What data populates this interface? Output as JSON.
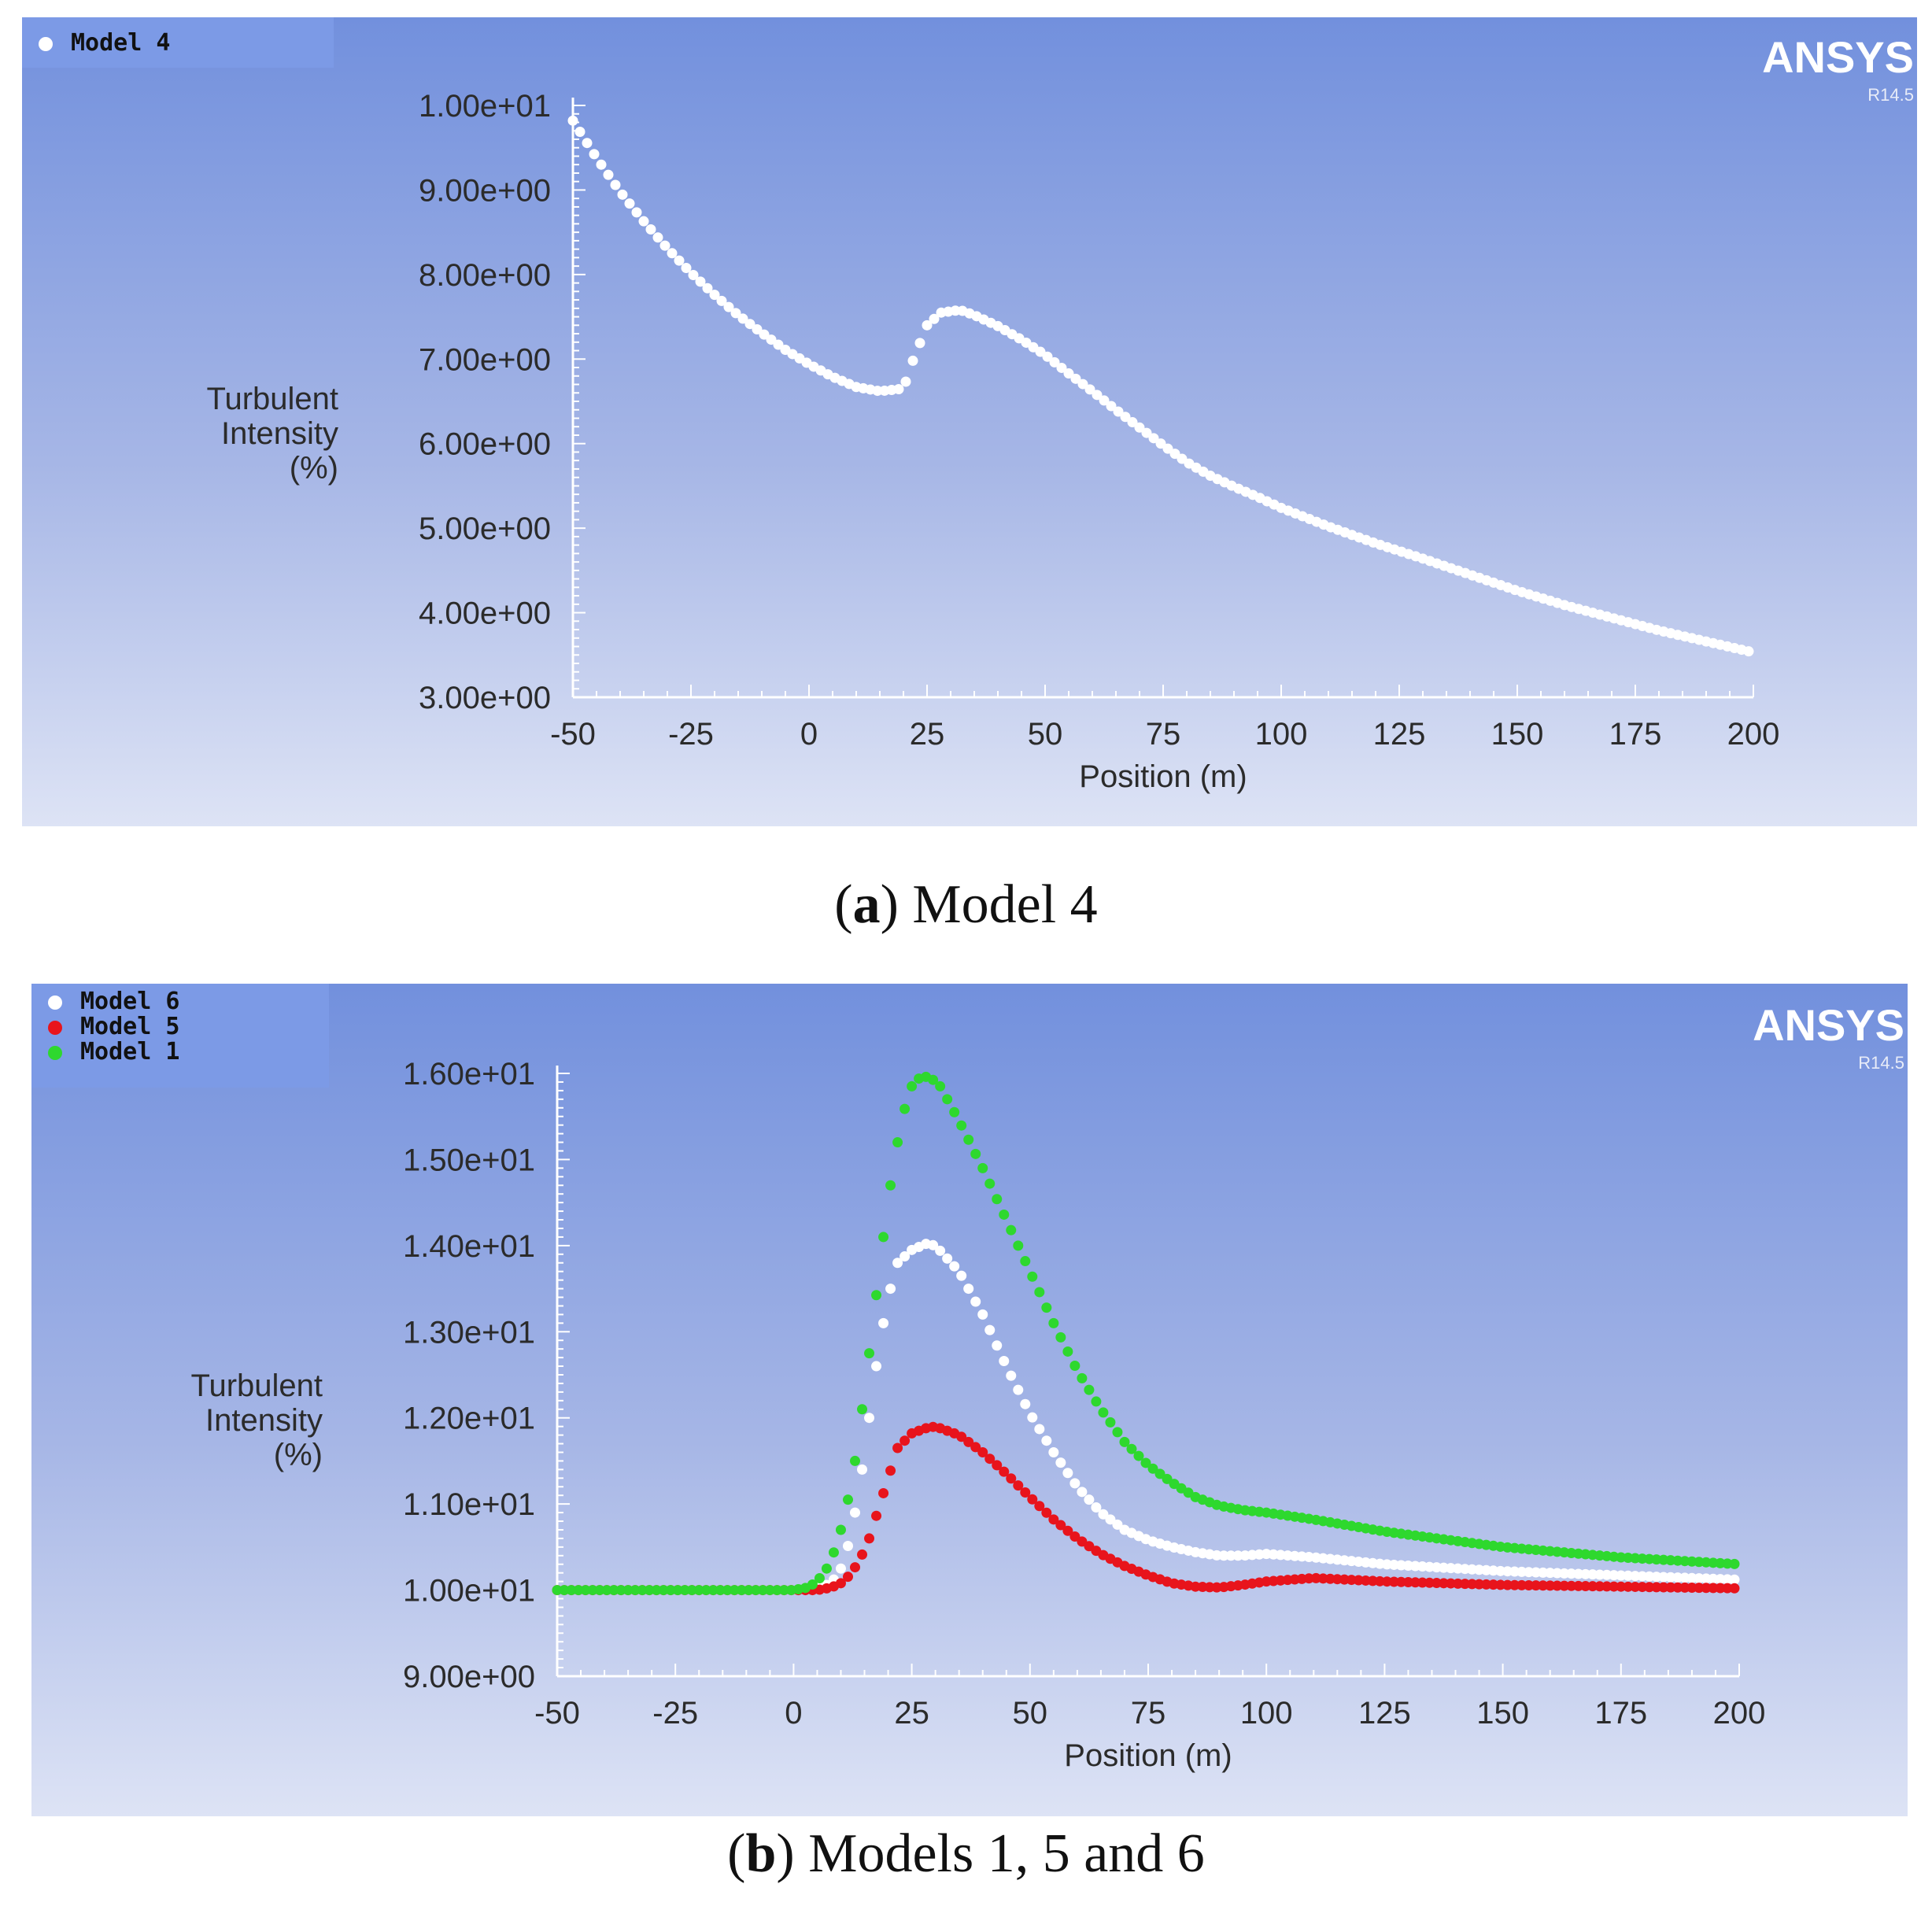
{
  "chart_data": [
    {
      "type": "scatter",
      "panel_label": "a",
      "caption": "Model 4",
      "brand": "ANSYS",
      "version": "R14.5",
      "ylabel_lines": [
        "Turbulent",
        "Intensity",
        "(%)"
      ],
      "xlabel": "Position (m)",
      "xlim": [
        -50,
        200
      ],
      "ylim": [
        3,
        10
      ],
      "x_ticks": [
        -50,
        -25,
        0,
        25,
        50,
        75,
        100,
        125,
        150,
        175,
        200
      ],
      "x_tick_labels": [
        "-50",
        "-25",
        "0",
        "25",
        "50",
        "75",
        "100",
        "125",
        "150",
        "175",
        "200"
      ],
      "y_ticks": [
        3,
        4,
        5,
        6,
        7,
        8,
        9,
        10
      ],
      "y_tick_labels": [
        "3.00e+00",
        "4.00e+00",
        "5.00e+00",
        "6.00e+00",
        "7.00e+00",
        "8.00e+00",
        "9.00e+00",
        "1.00e+01"
      ],
      "series": [
        {
          "name": "Model 4",
          "color": "#ffffff",
          "x": [
            -50,
            -45,
            -40,
            -35,
            -30,
            -25,
            -20,
            -15,
            -10,
            -5,
            0,
            5,
            10,
            15,
            20,
            22,
            25,
            28,
            32,
            35,
            40,
            45,
            50,
            55,
            60,
            65,
            70,
            75,
            80,
            85,
            90,
            95,
            100,
            110,
            120,
            130,
            140,
            150,
            160,
            170,
            180,
            190,
            200
          ],
          "y": [
            9.82,
            9.38,
            8.98,
            8.63,
            8.31,
            8.02,
            7.76,
            7.52,
            7.31,
            7.11,
            6.94,
            6.79,
            6.67,
            6.62,
            6.65,
            6.98,
            7.4,
            7.55,
            7.58,
            7.52,
            7.39,
            7.23,
            7.05,
            6.83,
            6.62,
            6.4,
            6.19,
            5.98,
            5.78,
            5.62,
            5.49,
            5.37,
            5.24,
            5.02,
            4.82,
            4.64,
            4.45,
            4.26,
            4.09,
            3.94,
            3.79,
            3.66,
            3.53
          ]
        }
      ]
    },
    {
      "type": "scatter",
      "panel_label": "b",
      "caption": "Models 1, 5 and 6",
      "brand": "ANSYS",
      "version": "R14.5",
      "ylabel_lines": [
        "Turbulent",
        "Intensity",
        "(%)"
      ],
      "xlabel": "Position (m)",
      "xlim": [
        -50,
        200
      ],
      "ylim": [
        9,
        16
      ],
      "x_ticks": [
        -50,
        -25,
        0,
        25,
        50,
        75,
        100,
        125,
        150,
        175,
        200
      ],
      "x_tick_labels": [
        "-50",
        "-25",
        "0",
        "25",
        "50",
        "75",
        "100",
        "125",
        "150",
        "175",
        "200"
      ],
      "y_ticks": [
        9,
        10,
        11,
        12,
        13,
        14,
        15,
        16
      ],
      "y_tick_labels": [
        "9.00e+00",
        "1.00e+01",
        "1.10e+01",
        "1.20e+01",
        "1.30e+01",
        "1.40e+01",
        "1.50e+01",
        "1.60e+01"
      ],
      "series": [
        {
          "name": "Model 6",
          "color": "#ffffff",
          "x": [
            -50,
            0,
            5,
            8,
            10,
            12,
            14,
            16,
            18,
            20,
            22,
            25,
            28,
            30,
            35,
            40,
            45,
            50,
            55,
            60,
            65,
            70,
            75,
            80,
            85,
            90,
            95,
            100,
            110,
            125,
            150,
            175,
            200
          ],
          "y": [
            10.0,
            10.0,
            10.02,
            10.08,
            10.25,
            10.6,
            11.2,
            12.0,
            12.8,
            13.4,
            13.8,
            13.95,
            14.02,
            14.0,
            13.7,
            13.2,
            12.6,
            12.05,
            11.6,
            11.2,
            10.9,
            10.7,
            10.58,
            10.5,
            10.44,
            10.4,
            10.4,
            10.42,
            10.38,
            10.3,
            10.22,
            10.17,
            10.12
          ]
        },
        {
          "name": "Model 5",
          "color": "#e8141c",
          "x": [
            -50,
            0,
            5,
            8,
            10,
            12,
            14,
            16,
            18,
            20,
            22,
            25,
            28,
            30,
            35,
            40,
            45,
            50,
            55,
            60,
            65,
            70,
            75,
            80,
            85,
            90,
            95,
            100,
            110,
            125,
            150,
            175,
            200
          ],
          "y": [
            10.0,
            10.0,
            10.0,
            10.03,
            10.08,
            10.18,
            10.35,
            10.6,
            10.95,
            11.3,
            11.65,
            11.82,
            11.88,
            11.9,
            11.8,
            11.6,
            11.35,
            11.08,
            10.82,
            10.6,
            10.42,
            10.28,
            10.17,
            10.08,
            10.04,
            10.03,
            10.06,
            10.1,
            10.14,
            10.1,
            10.06,
            10.04,
            10.02
          ]
        },
        {
          "name": "Model 1",
          "color": "#2ed82e",
          "x": [
            -50,
            0,
            3,
            5,
            7,
            9,
            11,
            13,
            15,
            17,
            19,
            21,
            23,
            25,
            27,
            29,
            31,
            35,
            40,
            45,
            50,
            55,
            60,
            65,
            70,
            75,
            80,
            85,
            90,
            95,
            100,
            110,
            125,
            150,
            175,
            200
          ],
          "y": [
            10.0,
            10.0,
            10.03,
            10.1,
            10.25,
            10.5,
            10.9,
            11.5,
            12.3,
            13.2,
            14.1,
            14.9,
            15.5,
            15.85,
            15.97,
            15.95,
            15.85,
            15.45,
            14.9,
            14.3,
            13.7,
            13.1,
            12.55,
            12.1,
            11.72,
            11.45,
            11.25,
            11.08,
            10.98,
            10.93,
            10.9,
            10.82,
            10.68,
            10.5,
            10.38,
            10.3
          ]
        }
      ]
    }
  ]
}
